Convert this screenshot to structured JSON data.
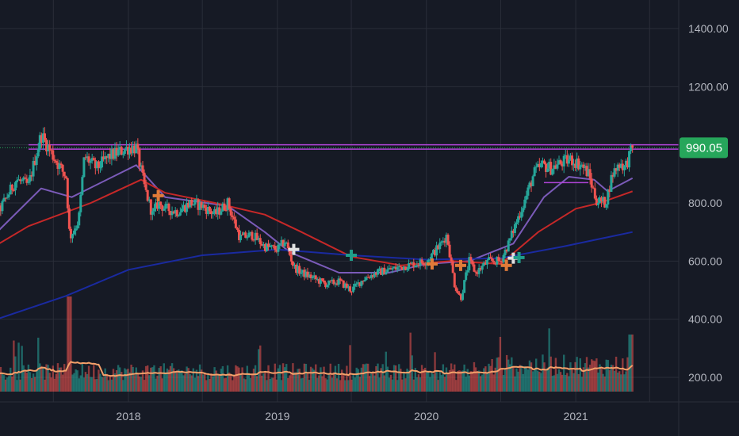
{
  "chart_data": {
    "type": "candlestick",
    "x_axis": {
      "ticks": [
        "2018",
        "2019",
        "2020",
        "2021"
      ]
    },
    "y_axis": {
      "ticks": [
        1400,
        1200,
        800,
        600,
        400,
        200
      ],
      "tick_labels": [
        "1400.00",
        "1200.00",
        "800.00",
        "600.00",
        "400.00",
        "200.00"
      ],
      "range": [
        130,
        1450
      ]
    },
    "last_price": {
      "value": 990.05,
      "label": "990.05"
    },
    "resistance_levels": [
      1000,
      985
    ],
    "price_path": [
      [
        "2017-01-01",
        730
      ],
      [
        "2017-02-15",
        765
      ],
      [
        "2017-04-01",
        880
      ],
      [
        "2017-05-01",
        860
      ],
      [
        "2017-06-01",
        1035
      ],
      [
        "2017-07-01",
        960
      ],
      [
        "2017-08-01",
        890
      ],
      [
        "2017-08-10",
        680
      ],
      [
        "2017-09-01",
        740
      ],
      [
        "2017-09-15",
        960
      ],
      [
        "2017-10-15",
        920
      ],
      [
        "2017-11-15",
        960
      ],
      [
        "2018-01-01",
        990
      ],
      [
        "2018-01-20",
        990
      ],
      [
        "2018-02-10",
        850
      ],
      [
        "2018-03-01",
        760
      ],
      [
        "2018-03-15",
        800
      ],
      [
        "2018-04-01",
        780
      ],
      [
        "2018-05-01",
        770
      ],
      [
        "2018-06-01",
        800
      ],
      [
        "2018-07-01",
        790
      ],
      [
        "2018-08-01",
        760
      ],
      [
        "2018-09-01",
        800
      ],
      [
        "2018-10-01",
        680
      ],
      [
        "2018-11-01",
        690
      ],
      [
        "2018-12-01",
        650
      ],
      [
        "2019-01-01",
        640
      ],
      [
        "2019-01-20",
        670
      ],
      [
        "2019-02-10",
        580
      ],
      [
        "2019-03-01",
        560
      ],
      [
        "2019-04-01",
        540
      ],
      [
        "2019-05-01",
        520
      ],
      [
        "2019-06-01",
        530
      ],
      [
        "2019-07-01",
        500
      ],
      [
        "2019-08-01",
        540
      ],
      [
        "2019-09-01",
        560
      ],
      [
        "2019-10-01",
        570
      ],
      [
        "2019-11-01",
        580
      ],
      [
        "2019-12-01",
        590
      ],
      [
        "2020-01-01",
        600
      ],
      [
        "2020-02-01",
        650
      ],
      [
        "2020-02-20",
        690
      ],
      [
        "2020-03-10",
        520
      ],
      [
        "2020-03-25",
        470
      ],
      [
        "2020-04-15",
        600
      ],
      [
        "2020-05-01",
        560
      ],
      [
        "2020-06-01",
        600
      ],
      [
        "2020-07-01",
        600
      ],
      [
        "2020-07-20",
        660
      ],
      [
        "2020-08-10",
        740
      ],
      [
        "2020-09-01",
        820
      ],
      [
        "2020-09-20",
        900
      ],
      [
        "2020-10-10",
        930
      ],
      [
        "2020-11-01",
        920
      ],
      [
        "2020-12-01",
        940
      ],
      [
        "2020-12-20",
        950
      ],
      [
        "2021-01-15",
        930
      ],
      [
        "2021-02-01",
        900
      ],
      [
        "2021-02-20",
        810
      ],
      [
        "2021-03-15",
        800
      ],
      [
        "2021-04-01",
        900
      ],
      [
        "2021-04-20",
        940
      ],
      [
        "2021-05-01",
        920
      ],
      [
        "2021-05-20",
        990.05
      ]
    ],
    "indicators": {
      "ma_fast": {
        "color": "#7b5bb9",
        "points": [
          [
            "2017-01-01",
            640
          ],
          [
            "2017-06-01",
            850
          ],
          [
            "2017-08-15",
            820
          ],
          [
            "2018-01-20",
            930
          ],
          [
            "2018-04-01",
            820
          ],
          [
            "2018-09-01",
            790
          ],
          [
            "2018-12-01",
            700
          ],
          [
            "2019-02-01",
            630
          ],
          [
            "2019-06-01",
            560
          ],
          [
            "2019-10-01",
            560
          ],
          [
            "2020-01-01",
            590
          ],
          [
            "2020-04-15",
            600
          ],
          [
            "2020-08-01",
            660
          ],
          [
            "2020-10-15",
            820
          ],
          [
            "2020-12-15",
            890
          ],
          [
            "2021-02-15",
            880
          ],
          [
            "2021-03-20",
            840
          ],
          [
            "2021-05-20",
            885
          ]
        ]
      },
      "ma_mid": {
        "color": "#c62828",
        "points": [
          [
            "2017-01-01",
            620
          ],
          [
            "2017-05-01",
            720
          ],
          [
            "2017-10-01",
            800
          ],
          [
            "2018-02-01",
            880
          ],
          [
            "2018-04-01",
            835
          ],
          [
            "2018-08-01",
            800
          ],
          [
            "2018-12-01",
            760
          ],
          [
            "2019-03-01",
            700
          ],
          [
            "2019-07-01",
            615
          ],
          [
            "2019-11-01",
            585
          ],
          [
            "2020-03-01",
            600
          ],
          [
            "2020-07-01",
            590
          ],
          [
            "2020-10-01",
            700
          ],
          [
            "2021-01-01",
            780
          ],
          [
            "2021-03-01",
            800
          ],
          [
            "2021-05-20",
            840
          ]
        ]
      },
      "ma_slow": {
        "color": "#1a2aa0",
        "points": [
          [
            "2017-01-01",
            380
          ],
          [
            "2017-08-01",
            480
          ],
          [
            "2018-01-01",
            570
          ],
          [
            "2018-07-01",
            620
          ],
          [
            "2019-01-01",
            640
          ],
          [
            "2019-07-01",
            620
          ],
          [
            "2020-01-01",
            605
          ],
          [
            "2020-07-01",
            610
          ],
          [
            "2020-12-01",
            650
          ],
          [
            "2021-05-20",
            700
          ]
        ]
      }
    },
    "volume": {
      "avg_color": "#f4a06a"
    },
    "signal_markers": [
      {
        "date": "2018-03-15",
        "price": 825,
        "color": "#e07b39"
      },
      {
        "date": "2019-02-10",
        "price": 640,
        "color": "#e0e0e0"
      },
      {
        "date": "2019-07-01",
        "price": 620,
        "color": "#1f9e8a"
      },
      {
        "date": "2020-01-15",
        "price": 590,
        "color": "#e07b39"
      },
      {
        "date": "2020-03-25",
        "price": 585,
        "color": "#e07b39"
      },
      {
        "date": "2020-07-15",
        "price": 585,
        "color": "#e07b39"
      },
      {
        "date": "2020-08-01",
        "price": 610,
        "color": "#e0e0e0"
      },
      {
        "date": "2020-08-15",
        "price": 612,
        "color": "#1f9e8a"
      }
    ],
    "colors": {
      "background": "#161a25",
      "grid": "#2a2e39",
      "up": "#26a69a",
      "down": "#ef5350",
      "resistance": "#b044d8",
      "badge": "#26a65b",
      "axis_text": "#b2b5be"
    }
  }
}
